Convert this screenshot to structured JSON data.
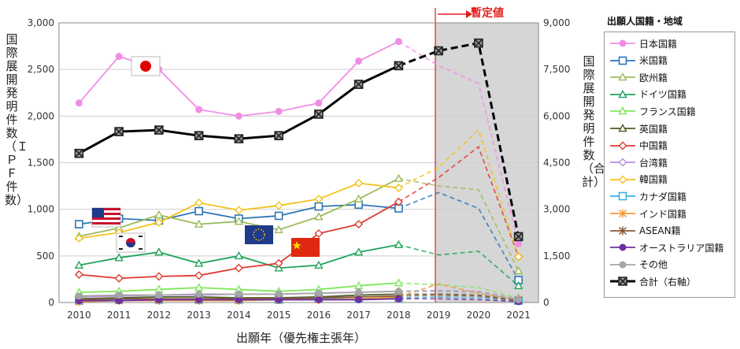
{
  "chart_data": {
    "type": "line",
    "title": "",
    "xlabel": "出願年（優先権主張年）",
    "ylabel_left": "国際展開発明件数（ＩＰＦ件数）",
    "ylabel_right": "国際展開発明件数（合計）",
    "annotation": "暫定値",
    "legend_title": "出願人国籍・地域",
    "x": [
      "2010",
      "2011",
      "2012",
      "2013",
      "2014",
      "2015",
      "2016",
      "2017",
      "2018",
      "2019",
      "2020",
      "2021"
    ],
    "ylim_left": [
      0,
      3000
    ],
    "yticks_left": [
      "0",
      "500",
      "1,000",
      "1,500",
      "2,000",
      "2,500",
      "3,000"
    ],
    "ylim_right": [
      0,
      9000
    ],
    "yticks_right": [
      "0",
      "1,500",
      "3,000",
      "4,500",
      "6,000",
      "7,500",
      "9,000"
    ],
    "provisional_from": "2019",
    "series": [
      {
        "name": "日本国籍",
        "color": "#f08ee6",
        "marker": "circle",
        "axis": "left",
        "values": [
          2140,
          2640,
          2500,
          2070,
          2000,
          2050,
          2140,
          2590,
          2800,
          2540,
          2350,
          630
        ]
      },
      {
        "name": "米国籍",
        "color": "#2e75b6",
        "marker": "square",
        "axis": "left",
        "values": [
          840,
          900,
          880,
          980,
          900,
          930,
          1030,
          1050,
          1010,
          1180,
          1010,
          240
        ]
      },
      {
        "name": "欧州籍",
        "color": "#9bbb59",
        "marker": "triangle",
        "axis": "left",
        "values": [
          710,
          800,
          940,
          840,
          870,
          780,
          920,
          1110,
          1330,
          1250,
          1210,
          340
        ]
      },
      {
        "name": "ドイツ国籍",
        "color": "#1fa55a",
        "marker": "triangle",
        "axis": "left",
        "values": [
          400,
          480,
          540,
          420,
          500,
          370,
          400,
          540,
          620,
          510,
          550,
          180
        ]
      },
      {
        "name": "フランス国籍",
        "color": "#7ee85a",
        "marker": "triangle",
        "axis": "left",
        "values": [
          110,
          120,
          140,
          160,
          140,
          120,
          140,
          180,
          210,
          190,
          160,
          50
        ]
      },
      {
        "name": "英国籍",
        "color": "#4f5a2a",
        "marker": "triangle",
        "axis": "left",
        "values": [
          40,
          50,
          60,
          60,
          50,
          50,
          60,
          80,
          90,
          90,
          80,
          25
        ]
      },
      {
        "name": "中国籍",
        "color": "#e03a2e",
        "marker": "diamond",
        "axis": "left",
        "values": [
          300,
          260,
          280,
          290,
          370,
          420,
          740,
          840,
          1080,
          1340,
          1670,
          490
        ]
      },
      {
        "name": "台湾籍",
        "color": "#b68ee0",
        "marker": "diamond",
        "axis": "left",
        "values": [
          60,
          70,
          80,
          80,
          90,
          90,
          100,
          110,
          120,
          130,
          120,
          40
        ]
      },
      {
        "name": "韓国籍",
        "color": "#f3c21a",
        "marker": "diamond",
        "axis": "left",
        "values": [
          690,
          750,
          860,
          1070,
          990,
          1040,
          1110,
          1280,
          1230,
          1450,
          1850,
          490
        ]
      },
      {
        "name": "カナダ国籍",
        "color": "#3ab0e6",
        "marker": "square",
        "axis": "left",
        "values": [
          20,
          30,
          30,
          30,
          30,
          30,
          40,
          40,
          50,
          60,
          50,
          20
        ]
      },
      {
        "name": "インド国籍",
        "color": "#f39a3a",
        "marker": "star",
        "axis": "left",
        "values": [
          10,
          20,
          20,
          20,
          20,
          30,
          30,
          40,
          60,
          200,
          100,
          30
        ]
      },
      {
        "name": "ASEAN籍",
        "color": "#8b5a3a",
        "marker": "star",
        "axis": "left",
        "values": [
          30,
          40,
          40,
          40,
          40,
          40,
          50,
          60,
          70,
          80,
          70,
          20
        ]
      },
      {
        "name": "オーストラリア国籍",
        "color": "#7030a0",
        "marker": "circle",
        "axis": "left",
        "values": [
          20,
          20,
          30,
          30,
          30,
          30,
          30,
          30,
          40,
          40,
          30,
          10
        ]
      },
      {
        "name": "その他",
        "color": "#a6a6a6",
        "marker": "circle",
        "axis": "left",
        "values": [
          70,
          80,
          80,
          90,
          90,
          90,
          100,
          110,
          120,
          120,
          110,
          30
        ]
      },
      {
        "name": "合計（右軸）",
        "color": "#000000",
        "marker": "xsquare",
        "axis": "right",
        "values": [
          4800,
          5500,
          5550,
          5370,
          5270,
          5370,
          6060,
          7020,
          7620,
          8100,
          8350,
          2120
        ]
      }
    ]
  }
}
